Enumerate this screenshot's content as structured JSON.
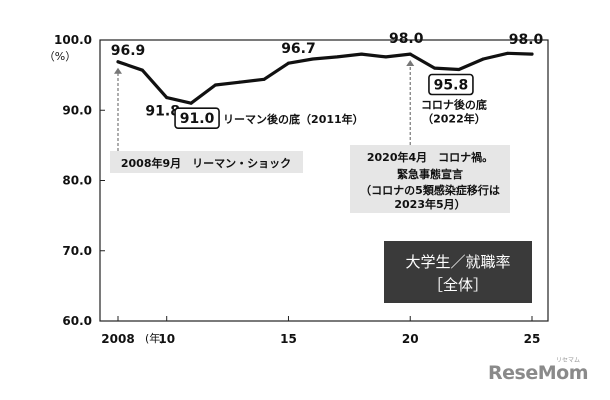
{
  "chart_data": {
    "type": "line",
    "x": [
      2008,
      2009,
      2010,
      2011,
      2012,
      2013,
      2014,
      2015,
      2016,
      2017,
      2018,
      2019,
      2020,
      2021,
      2022,
      2023,
      2024,
      2025
    ],
    "values": [
      96.9,
      95.7,
      91.8,
      91.0,
      93.6,
      94.0,
      94.4,
      96.7,
      97.3,
      97.6,
      98.0,
      97.6,
      98.0,
      96.0,
      95.8,
      97.3,
      98.1,
      98.0
    ],
    "ylim": [
      60,
      100
    ],
    "xlim": [
      2008,
      2025
    ],
    "y_ticks": [
      "60.0",
      "70.0",
      "80.0",
      "90.0",
      "100.0"
    ],
    "y_unit": "（%）",
    "x_ticks": [
      {
        "x": 2008,
        "label": "2008"
      },
      {
        "x": 2010,
        "label": "10"
      },
      {
        "x": 2015,
        "label": "15"
      },
      {
        "x": 2020,
        "label": "20"
      },
      {
        "x": 2025,
        "label": "25"
      }
    ],
    "x_unit": "(年)",
    "grid": false,
    "point_labels": [
      {
        "x": 2008,
        "text": "96.9"
      },
      {
        "x": 2010,
        "text": "91.8"
      },
      {
        "x": 2015,
        "text": "96.7"
      },
      {
        "x": 2020,
        "text": "98.0"
      },
      {
        "x": 2025,
        "text": "98.0"
      }
    ],
    "boxed_labels": [
      {
        "x": 2011,
        "text": "91.0",
        "note": "リーマン後の底（2011年）"
      },
      {
        "x": 2022,
        "text": "95.8",
        "note_lines": [
          "コロナ後の底",
          "（2022年）"
        ]
      }
    ],
    "events": [
      {
        "x": 2008,
        "lines": [
          "2008年9月　リーマン・ショック"
        ]
      },
      {
        "x": 2020,
        "lines": [
          "2020年4月　コロナ禍。",
          "緊急事態宣言",
          "（コロナの5類感染症移行は",
          "2023年5月）"
        ]
      }
    ],
    "legend_box": {
      "lines": [
        "大学生／就職率",
        "［全体］"
      ],
      "bg": "#3a3a3a",
      "color": "#ffffff"
    },
    "line_color": "#111111",
    "callout_bg": "#e6e6e6"
  },
  "brand": {
    "name": "ReseMom",
    "tagline": "リセマム"
  }
}
